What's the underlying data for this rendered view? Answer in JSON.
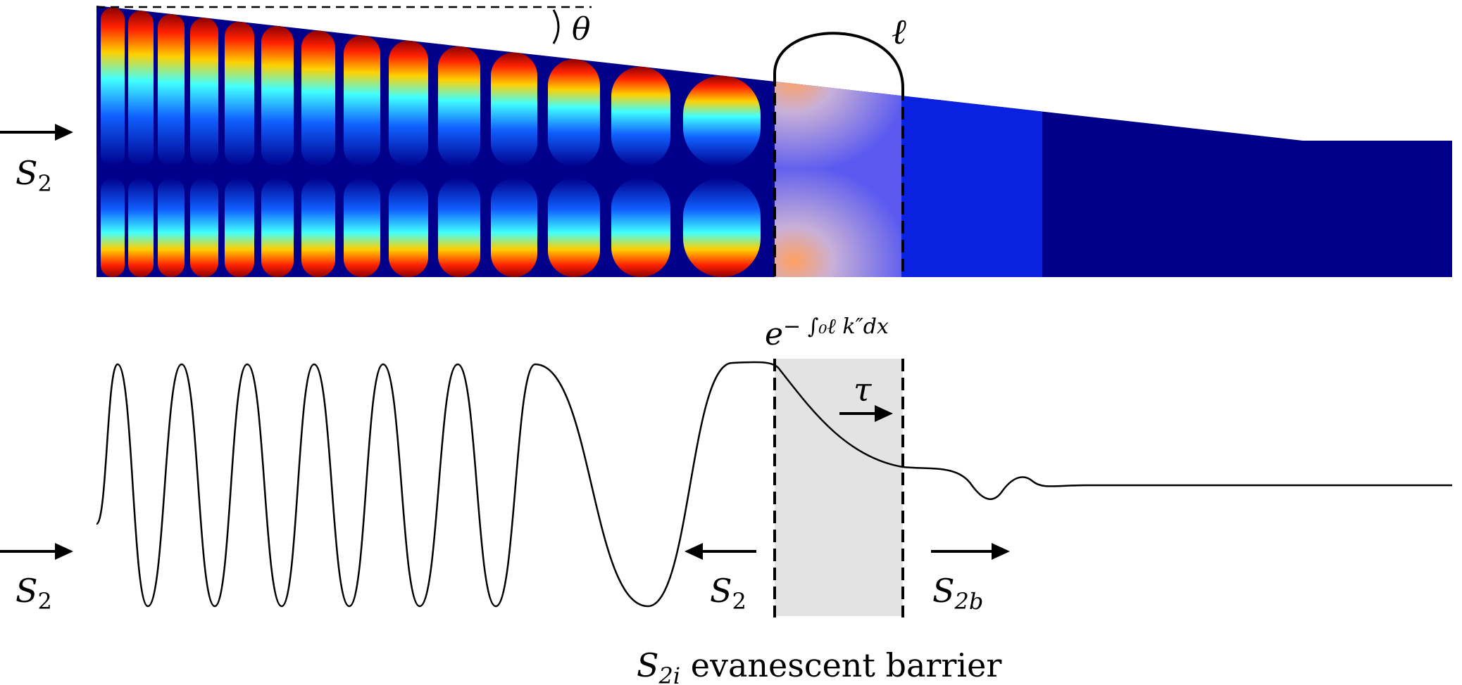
{
  "labels": {
    "angle": "θ",
    "length": "ℓ",
    "input_mode_top": "S",
    "input_mode_top_sub": "2",
    "input_mode_bottom": "S",
    "input_mode_bottom_sub": "2",
    "reflected_mode": "S",
    "reflected_mode_sub": "2",
    "transmitted_mode": "S",
    "transmitted_mode_sub": "2b",
    "tunneling_time": "τ",
    "decay_base": "e",
    "decay_exponent": "− ∫₀ℓ k″dx",
    "barrier_mode": "S",
    "barrier_mode_sub": "2i",
    "barrier_caption": " evanescent barrier"
  },
  "colors": {
    "field_colormap": [
      "#00008b",
      "#0000ff",
      "#00bfff",
      "#00ffff",
      "#ffff00",
      "#ff8c00",
      "#ff0000",
      "#8b0000"
    ],
    "barrier_fill": "#e3e3e3",
    "line": "#000000"
  },
  "icons": [
    "right-arrow-icon",
    "left-arrow-icon"
  ]
}
